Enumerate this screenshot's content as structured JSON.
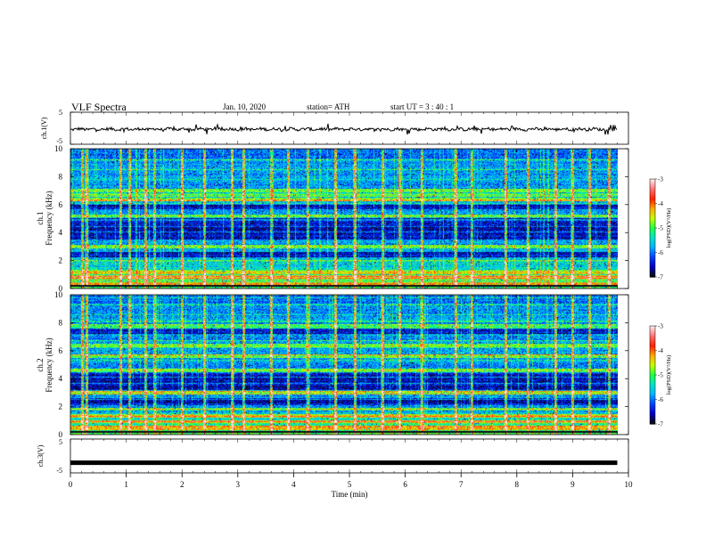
{
  "header": {
    "title": "VLF  Spectra",
    "date": "Jan. 10, 2020",
    "station": "station= ATH",
    "start": "start  UT  =   3  : 40 : 1"
  },
  "chart_data": [
    {
      "type": "line",
      "panel": "ch1-waveform",
      "ylabel": "ch.1(V)",
      "yticks": [
        "5",
        "-5"
      ],
      "ylim": [
        -5,
        5
      ],
      "x_range_min": [
        0,
        9.8
      ],
      "series": [
        {
          "values_description_free": true,
          "level_V": -0.3,
          "color": "#000000"
        }
      ]
    },
    {
      "type": "heatmap",
      "panel": "ch1-spectrogram",
      "ylabel_lines": [
        "ch.1",
        "Frequency  (kHz)"
      ],
      "yticks": [
        "0",
        "2",
        "4",
        "6",
        "8",
        "10"
      ],
      "ylim_kHz": [
        0,
        10
      ],
      "x_range_min": [
        0,
        9.8
      ],
      "colorbar": {
        "label": "log(PSD)(V²/Hz)",
        "ticks": [
          "-3",
          "-4",
          "-5",
          "-6",
          "-7"
        ],
        "range": [
          -7,
          -3
        ]
      },
      "quiet_bands_kHz": [
        [
          3.5,
          5.0
        ],
        [
          5.7,
          6.0
        ],
        [
          2.0,
          2.6
        ]
      ],
      "strong_bands_kHz": [
        0.3,
        0.8,
        1.1,
        2.1,
        3.0,
        5.2,
        6.4,
        6.7,
        7.0
      ],
      "impulses_min": [
        0.2,
        0.28,
        0.9,
        1.05,
        1.35,
        1.5,
        2.0,
        2.4,
        2.9,
        3.1,
        3.6,
        3.9,
        4.25,
        4.75,
        5.1,
        5.6,
        5.9,
        6.3,
        6.9,
        7.2,
        7.8,
        8.2,
        8.7,
        9.0,
        9.3,
        9.65
      ]
    },
    {
      "type": "heatmap",
      "panel": "ch2-spectrogram",
      "ylabel_lines": [
        "ch.2",
        "Frequency  (kHz)"
      ],
      "yticks": [
        "0",
        "2",
        "4",
        "6",
        "8",
        "10"
      ],
      "ylim_kHz": [
        0,
        10
      ],
      "x_range_min": [
        0,
        9.8
      ],
      "colorbar": {
        "label": "log(PSD)(V²/Hz)",
        "ticks": [
          "-3",
          "-4",
          "-5",
          "-6",
          "-7"
        ],
        "range": [
          -7,
          -3
        ]
      },
      "quiet_bands_kHz": [
        [
          3.2,
          4.4
        ],
        [
          2.0,
          2.6
        ],
        [
          7.2,
          7.6
        ]
      ],
      "strong_bands_kHz": [
        0.5,
        0.9,
        1.3,
        1.8,
        3.0,
        4.6,
        5.6,
        6.4,
        7.8
      ],
      "impulses_min": [
        0.2,
        0.28,
        0.9,
        1.05,
        1.35,
        1.5,
        2.0,
        2.4,
        2.9,
        3.1,
        3.6,
        3.9,
        4.25,
        4.75,
        5.1,
        5.6,
        5.9,
        6.3,
        6.9,
        7.2,
        7.8,
        8.2,
        8.7,
        9.0,
        9.3,
        9.65
      ]
    },
    {
      "type": "line",
      "panel": "ch3-waveform",
      "ylabel": "ch.3(V)",
      "yticks": [
        "5",
        "-5"
      ],
      "ylim": [
        -5,
        5
      ],
      "x_range_min": [
        0,
        9.8
      ],
      "series": [
        {
          "level_V": -2.0,
          "color": "#000000"
        }
      ]
    }
  ],
  "xaxis": {
    "label": "Time  (min)",
    "ticks": [
      "0",
      "1",
      "2",
      "3",
      "4",
      "5",
      "6",
      "7",
      "8",
      "9",
      "10"
    ],
    "xlim": [
      0,
      10
    ]
  },
  "colors": {
    "scale": [
      "#0b0b14",
      "#0000c8",
      "#0044ff",
      "#00b4ff",
      "#00e6c8",
      "#22ff44",
      "#c8ff00",
      "#ffaa00",
      "#ff2000",
      "#ff7070",
      "#ffe8e8"
    ]
  }
}
